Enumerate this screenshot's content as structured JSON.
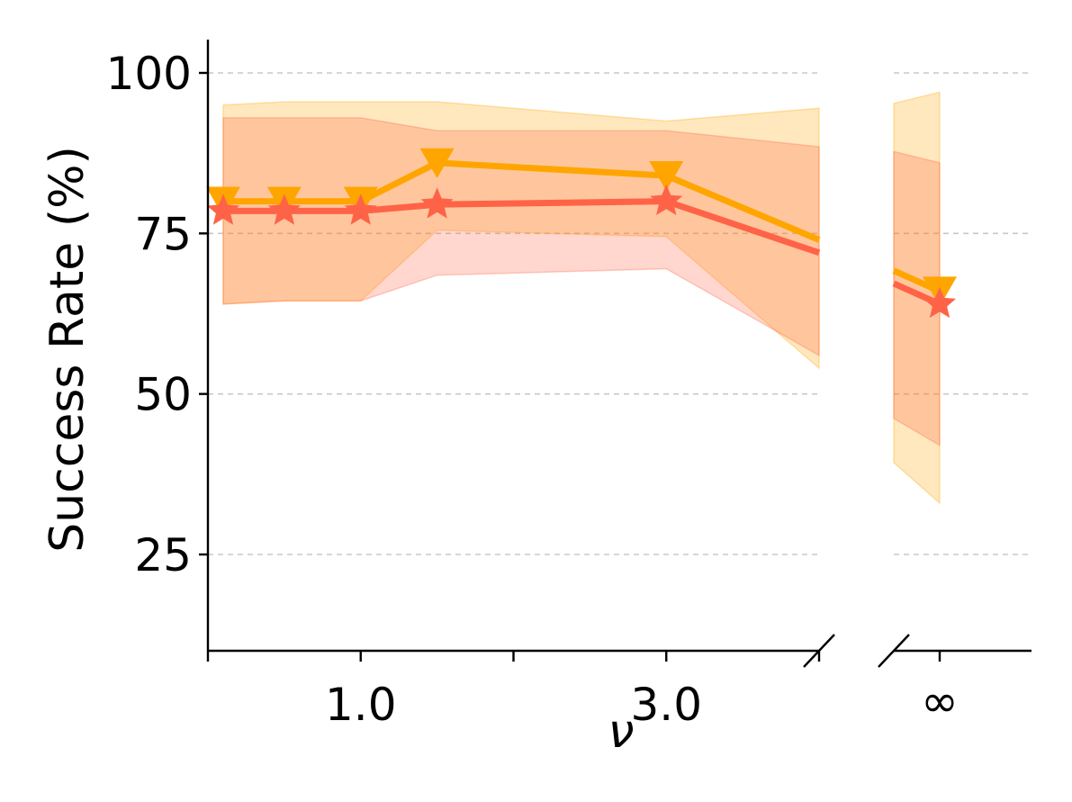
{
  "chart_data": {
    "type": "line",
    "title": "",
    "xlabel": "ν",
    "ylabel": "Success Rate (%)",
    "ylim": [
      10,
      105
    ],
    "yticks": [
      "25",
      "50",
      "75",
      "100"
    ],
    "xticks_left": [
      "1.0",
      "3.0"
    ],
    "xtick_right": "∞",
    "grid": "y-dashed",
    "x_axis": "broken",
    "series": [
      {
        "marker": "triangle-down",
        "color": "#FFA500",
        "x": [
          0.1,
          0.5,
          1.0,
          1.5,
          3.0,
          4.0,
          "∞"
        ],
        "y": [
          80,
          80,
          80,
          86,
          84,
          74,
          66
        ],
        "lower": [
          64,
          64.5,
          64.5,
          75.5,
          74.5,
          54,
          33
        ],
        "upper": [
          95,
          95.5,
          95.5,
          95.5,
          92.5,
          94.5,
          97
        ]
      },
      {
        "marker": "star",
        "color": "#FF6347",
        "x": [
          0.1,
          0.5,
          1.0,
          1.5,
          3.0,
          4.0,
          "∞"
        ],
        "y": [
          78.5,
          78.5,
          78.5,
          79.5,
          80,
          72,
          64
        ],
        "lower": [
          64,
          64.5,
          64.5,
          68.5,
          69.5,
          56,
          42
        ],
        "upper": [
          93,
          93,
          93,
          91,
          91,
          88.5,
          86
        ]
      }
    ]
  }
}
